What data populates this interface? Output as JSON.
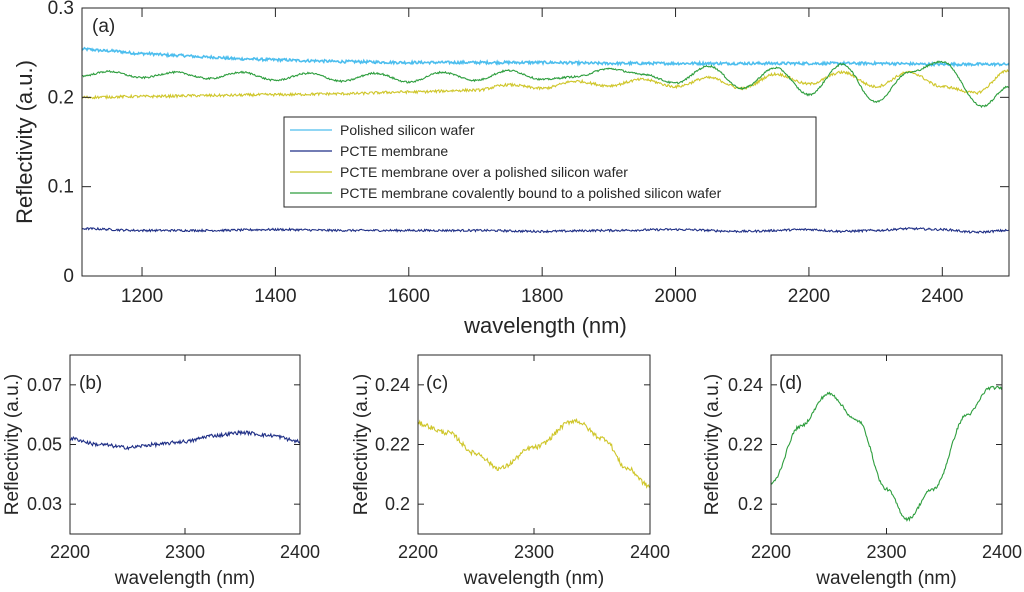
{
  "chart_data": [
    {
      "type": "line",
      "panel_label": "(a)",
      "xlabel": "wavelength (nm)",
      "ylabel": "Reflectivity (a.u.)",
      "xlim": [
        1110,
        2500
      ],
      "ylim": [
        0,
        0.3
      ],
      "xticks": [
        1200,
        1400,
        1600,
        1800,
        2000,
        2200,
        2400
      ],
      "yticks": [
        0,
        0.1,
        0.2,
        0.3
      ],
      "ytick_labels": [
        "0",
        "0.1",
        "0.2",
        "0.3"
      ],
      "legend_position": "center",
      "series": [
        {
          "name": "Polished silicon wafer",
          "color": "#4DBEEE",
          "x": [
            1110,
            1150,
            1200,
            1250,
            1300,
            1350,
            1400,
            1450,
            1500,
            1600,
            1700,
            1800,
            1900,
            2000,
            2100,
            2200,
            2300,
            2400,
            2500
          ],
          "y": [
            0.254,
            0.252,
            0.249,
            0.247,
            0.245,
            0.243,
            0.242,
            0.241,
            0.24,
            0.239,
            0.239,
            0.239,
            0.238,
            0.238,
            0.238,
            0.238,
            0.238,
            0.237,
            0.237
          ],
          "noise": 0.0015
        },
        {
          "name": "PCTE membrane",
          "color": "#1F2F86",
          "x": [
            1110,
            1200,
            1300,
            1400,
            1500,
            1600,
            1700,
            1800,
            1900,
            2000,
            2100,
            2200,
            2250,
            2300,
            2350,
            2400,
            2450,
            2500
          ],
          "y": [
            0.053,
            0.051,
            0.051,
            0.052,
            0.051,
            0.051,
            0.051,
            0.05,
            0.051,
            0.052,
            0.05,
            0.052,
            0.05,
            0.051,
            0.053,
            0.052,
            0.049,
            0.051
          ],
          "noise": 0.0012
        },
        {
          "name": "PCTE membrane over a polished silicon wafer",
          "color": "#CFC62A",
          "x": [
            1110,
            1200,
            1300,
            1400,
            1500,
            1600,
            1700,
            1750,
            1800,
            1850,
            1900,
            1950,
            2000,
            2050,
            2100,
            2150,
            2200,
            2250,
            2300,
            2350,
            2400,
            2450,
            2500
          ],
          "y": [
            0.2,
            0.201,
            0.202,
            0.203,
            0.204,
            0.206,
            0.208,
            0.214,
            0.21,
            0.218,
            0.213,
            0.22,
            0.212,
            0.222,
            0.21,
            0.226,
            0.215,
            0.228,
            0.212,
            0.228,
            0.212,
            0.205,
            0.23
          ],
          "noise": 0.0015
        },
        {
          "name": "PCTE membrane covalently bound to a polished silicon wafer",
          "color": "#2E9E3E",
          "x": [
            1110,
            1150,
            1200,
            1250,
            1300,
            1350,
            1400,
            1450,
            1500,
            1550,
            1600,
            1650,
            1700,
            1750,
            1800,
            1850,
            1900,
            1950,
            2000,
            2050,
            2100,
            2150,
            2200,
            2250,
            2300,
            2350,
            2400,
            2460,
            2500
          ],
          "y": [
            0.224,
            0.229,
            0.222,
            0.228,
            0.221,
            0.228,
            0.219,
            0.227,
            0.218,
            0.227,
            0.217,
            0.228,
            0.219,
            0.23,
            0.22,
            0.223,
            0.232,
            0.226,
            0.216,
            0.235,
            0.21,
            0.233,
            0.203,
            0.237,
            0.195,
            0.228,
            0.24,
            0.19,
            0.212
          ],
          "noise": 0.001
        }
      ]
    },
    {
      "type": "line",
      "panel_label": "(b)",
      "xlabel": "wavelength (nm)",
      "ylabel": "Reflectivity (a.u.)",
      "xlim": [
        2200,
        2400
      ],
      "ylim": [
        0.02,
        0.08
      ],
      "xticks": [
        2200,
        2300,
        2400
      ],
      "yticks": [
        0.03,
        0.05,
        0.07
      ],
      "ytick_labels": [
        "0.03",
        "0.05",
        "0.07"
      ],
      "series": [
        {
          "name": "PCTE membrane",
          "color": "#1F2F86",
          "x": [
            2200,
            2225,
            2250,
            2275,
            2300,
            2325,
            2350,
            2375,
            2400
          ],
          "y": [
            0.052,
            0.05,
            0.049,
            0.05,
            0.051,
            0.053,
            0.054,
            0.053,
            0.051
          ],
          "noise": 0.0006
        }
      ]
    },
    {
      "type": "line",
      "panel_label": "(c)",
      "xlabel": "wavelength (nm)",
      "ylabel": "Reflectivity (a.u.)",
      "xlim": [
        2200,
        2400
      ],
      "ylim": [
        0.19,
        0.25
      ],
      "xticks": [
        2200,
        2300,
        2400
      ],
      "yticks": [
        0.2,
        0.22,
        0.24
      ],
      "ytick_labels": [
        "0.2",
        "0.22",
        "0.24"
      ],
      "series": [
        {
          "name": "PCTE membrane over a polished silicon wafer",
          "color": "#CFC62A",
          "x": [
            2200,
            2225,
            2250,
            2270,
            2300,
            2335,
            2360,
            2380,
            2400
          ],
          "y": [
            0.227,
            0.224,
            0.217,
            0.212,
            0.219,
            0.228,
            0.222,
            0.212,
            0.206
          ],
          "noise": 0.0008
        }
      ]
    },
    {
      "type": "line",
      "panel_label": "(d)",
      "xlabel": "wavelength (nm)",
      "ylabel": "Reflectivity (a.u.)",
      "xlim": [
        2200,
        2400
      ],
      "ylim": [
        0.19,
        0.25
      ],
      "xticks": [
        2200,
        2300,
        2400
      ],
      "yticks": [
        0.2,
        0.22,
        0.24
      ],
      "ytick_labels": [
        "0.2",
        "0.22",
        "0.24"
      ],
      "series": [
        {
          "name": "PCTE membrane covalently bound to a polished silicon wafer",
          "color": "#2E9E3E",
          "x": [
            2200,
            2225,
            2250,
            2275,
            2300,
            2318,
            2340,
            2370,
            2390,
            2400
          ],
          "y": [
            0.207,
            0.226,
            0.237,
            0.228,
            0.205,
            0.195,
            0.205,
            0.23,
            0.239,
            0.239
          ],
          "noise": 0.0005
        }
      ]
    }
  ]
}
